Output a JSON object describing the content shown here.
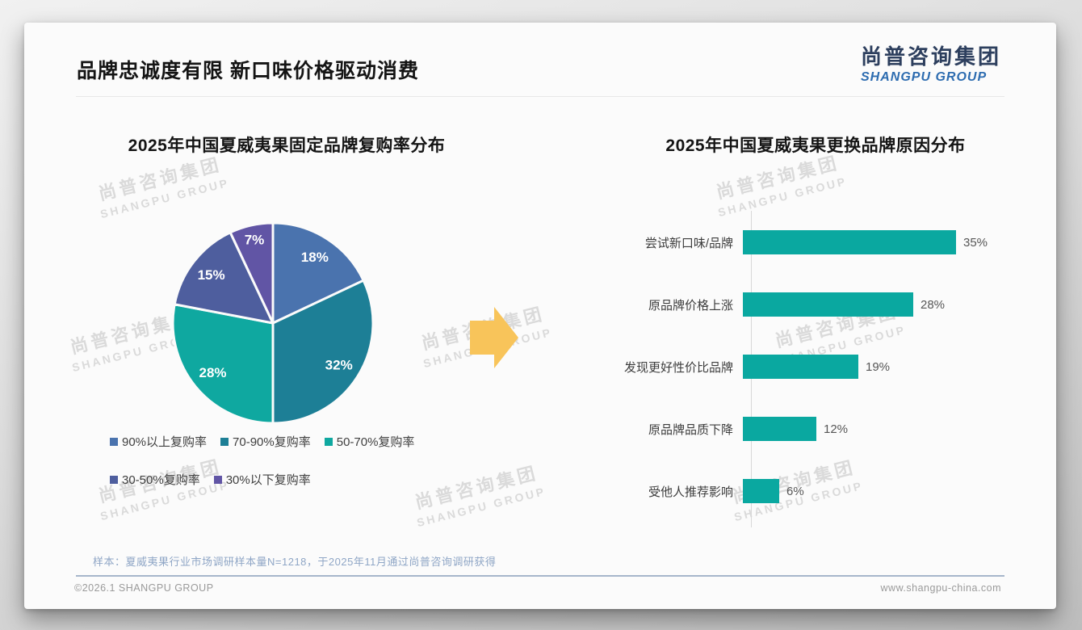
{
  "slide": {
    "title": "品牌忠诚度有限 新口味价格驱动消费",
    "logo": {
      "cn": "尚普咨询集团",
      "en": "SHANGPU GROUP"
    },
    "watermark": {
      "cn": "尚普咨询集团",
      "en": "SHANGPU GROUP"
    },
    "footnote": "样本：夏威夷果行业市场调研样本量N=1218，于2025年11月通过尚普咨询调研获得",
    "footer_left": "©2026.1 SHANGPU GROUP",
    "footer_right": "www.shangpu-china.com",
    "colors": {
      "arrow": "#f8c45a",
      "logo_cn": "#2d3f5e",
      "logo_en": "#2d6cb0"
    }
  },
  "chart_data": [
    {
      "type": "pie",
      "title": "2025年中国夏威夷果固定品牌复购率分布",
      "labels": [
        "90%以上复购率",
        "70-90%复购率",
        "50-70%复购率",
        "30-50%复购率",
        "30%以下复购率"
      ],
      "values": [
        18,
        32,
        28,
        15,
        7
      ],
      "data_labels": [
        "18%",
        "32%",
        "28%",
        "15%",
        "7%"
      ],
      "colors": [
        "#4a73ae",
        "#1d7f96",
        "#0fa8a0",
        "#4e5e9e",
        "#6155a5"
      ],
      "start_angle_deg": 0,
      "direction": "clockwise",
      "legend_position": "bottom",
      "label_color": "#ffffff"
    },
    {
      "type": "bar",
      "orientation": "horizontal",
      "title": "2025年中国夏威夷果更换品牌原因分布",
      "categories": [
        "尝试新口味/品牌",
        "原品牌价格上涨",
        "发现更好性价比品牌",
        "原品牌品质下降",
        "受他人推荐影响"
      ],
      "values": [
        35,
        28,
        19,
        12,
        6
      ],
      "value_labels": [
        "35%",
        "28%",
        "19%",
        "12%",
        "6%"
      ],
      "bar_color": "#0aa8a0",
      "xlim": [
        0,
        38
      ],
      "grid": false,
      "axis_line": true
    }
  ]
}
